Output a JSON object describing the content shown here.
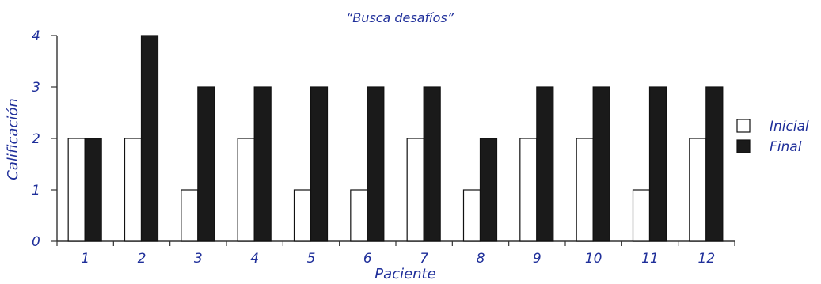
{
  "chart_data": {
    "type": "bar",
    "title": "“Busca desafíos”",
    "xlabel": "Paciente",
    "ylabel": "Calificación",
    "categories": [
      "1",
      "2",
      "3",
      "4",
      "5",
      "6",
      "7",
      "8",
      "9",
      "10",
      "11",
      "12"
    ],
    "y_ticks": [
      "0",
      "1",
      "2",
      "3",
      "4"
    ],
    "ylim": [
      0,
      4
    ],
    "grid": false,
    "legend_position": "right",
    "series": [
      {
        "name": "Inicial",
        "color": "#ffffff",
        "values": [
          2,
          2,
          1,
          2,
          1,
          1,
          2,
          1,
          2,
          2,
          1,
          2
        ]
      },
      {
        "name": "Final",
        "color": "#1a1a1a",
        "values": [
          2,
          4,
          3,
          3,
          3,
          3,
          3,
          2,
          3,
          3,
          3,
          3
        ]
      }
    ]
  }
}
